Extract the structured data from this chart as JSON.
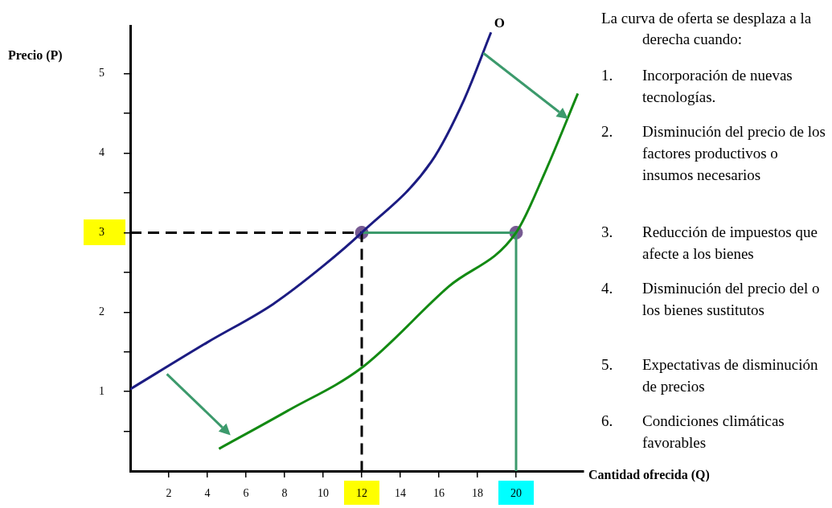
{
  "chart_data": {
    "type": "line",
    "xlabel": "Cantidad ofrecida (Q)",
    "ylabel": "Precio (P)",
    "xlim": [
      0,
      23.5
    ],
    "ylim": [
      0,
      5.6
    ],
    "xticks": [
      2,
      4,
      6,
      8,
      10,
      12,
      14,
      16,
      18,
      20
    ],
    "yticks": [
      {
        "value": 0.5,
        "label": null
      },
      1,
      {
        "value": 1.5,
        "label": null
      },
      2,
      {
        "value": 2.5,
        "label": null
      },
      3,
      {
        "value": 3.5,
        "label": null
      },
      4,
      {
        "value": 4.5,
        "label": null
      },
      5
    ],
    "grid": false,
    "legend": false,
    "marker": "none",
    "annotations": [
      "La curva de oferta se desplaza a la derecha cuando:",
      "1. Incorporación de nuevas tecnologías.",
      "2. Disminución del precio de los factores productivos o insumos necesarios",
      "3. Reducción de impuestos que afecte a los bienes",
      "4. Disminución del precio del o los bienes sustitutos",
      "5. Expectativas de disminución de precios",
      "6. Condiciones climáticas favorables"
    ],
    "series": [
      {
        "name": "O",
        "color": "#1c1c82",
        "x": [
          0,
          4,
          7.4,
          10,
          12,
          15.6,
          17.3,
          18.7
        ],
        "values": [
          1.03,
          1.62,
          2.1,
          2.58,
          3,
          3.89,
          4.67,
          5.52
        ]
      },
      {
        "color": "#138a13",
        "x": [
          4.6,
          8.1,
          12,
          16.5,
          20,
          21.5,
          23.2
        ],
        "values": [
          0.28,
          0.75,
          1.3,
          2.32,
          3,
          3.76,
          4.75
        ]
      },
      {
        "color": "#000000",
        "line_style": "dashed",
        "x": [
          0,
          12,
          12
        ],
        "values": [
          3,
          3,
          0
        ]
      },
      {
        "color": "#3c9a6c",
        "line_style": "solid",
        "x": [
          12,
          20,
          20
        ],
        "values": [
          3,
          3,
          0
        ]
      },
      {
        "type": "scatter",
        "marker": "circle",
        "color": "#765a92",
        "x": [
          12,
          20
        ],
        "values": [
          3,
          3
        ]
      }
    ]
  }
}
